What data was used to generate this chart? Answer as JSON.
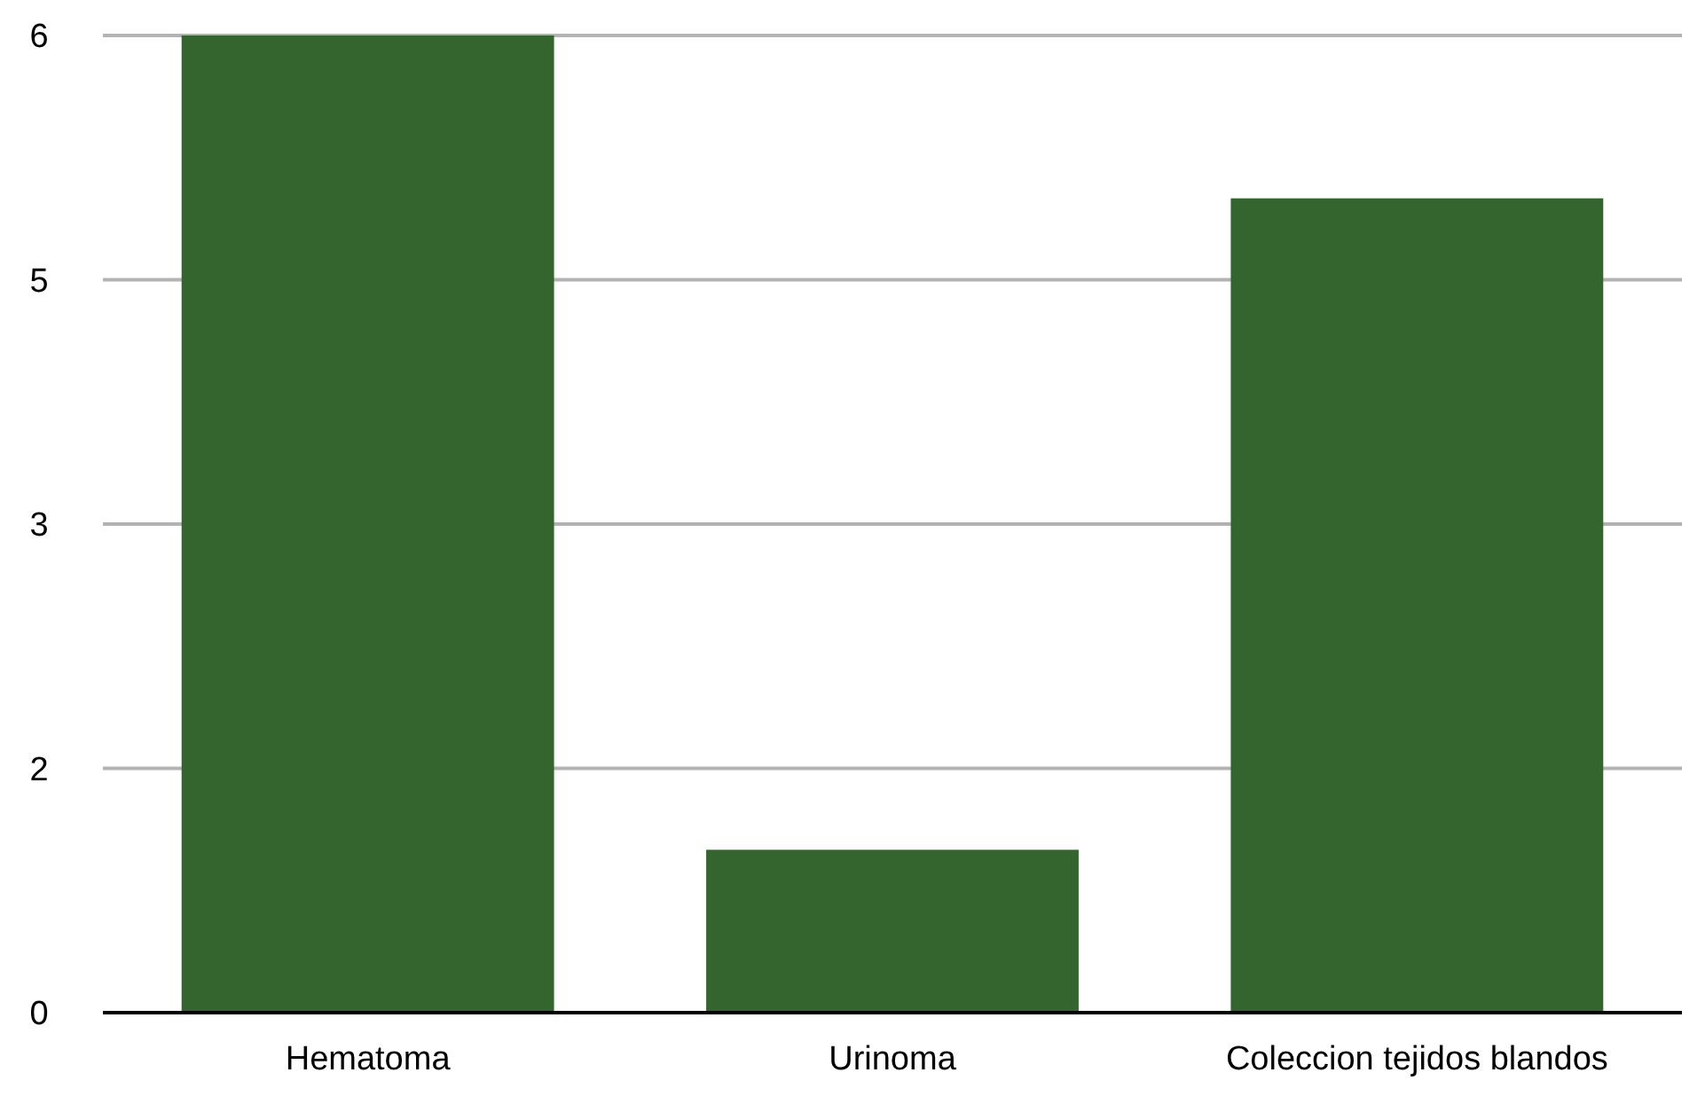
{
  "chart_data": {
    "type": "bar",
    "categories": [
      "Hematoma",
      "Urinoma",
      "Coleccion tejidos blandos"
    ],
    "values": [
      6,
      1,
      5
    ],
    "color": "#35652f",
    "ylim": [
      0,
      6
    ],
    "yticks": [
      0,
      {
        "value": 1.5,
        "label": "2"
      },
      3,
      {
        "value": 4.5,
        "label": "5"
      },
      6
    ],
    "grid": "y"
  }
}
